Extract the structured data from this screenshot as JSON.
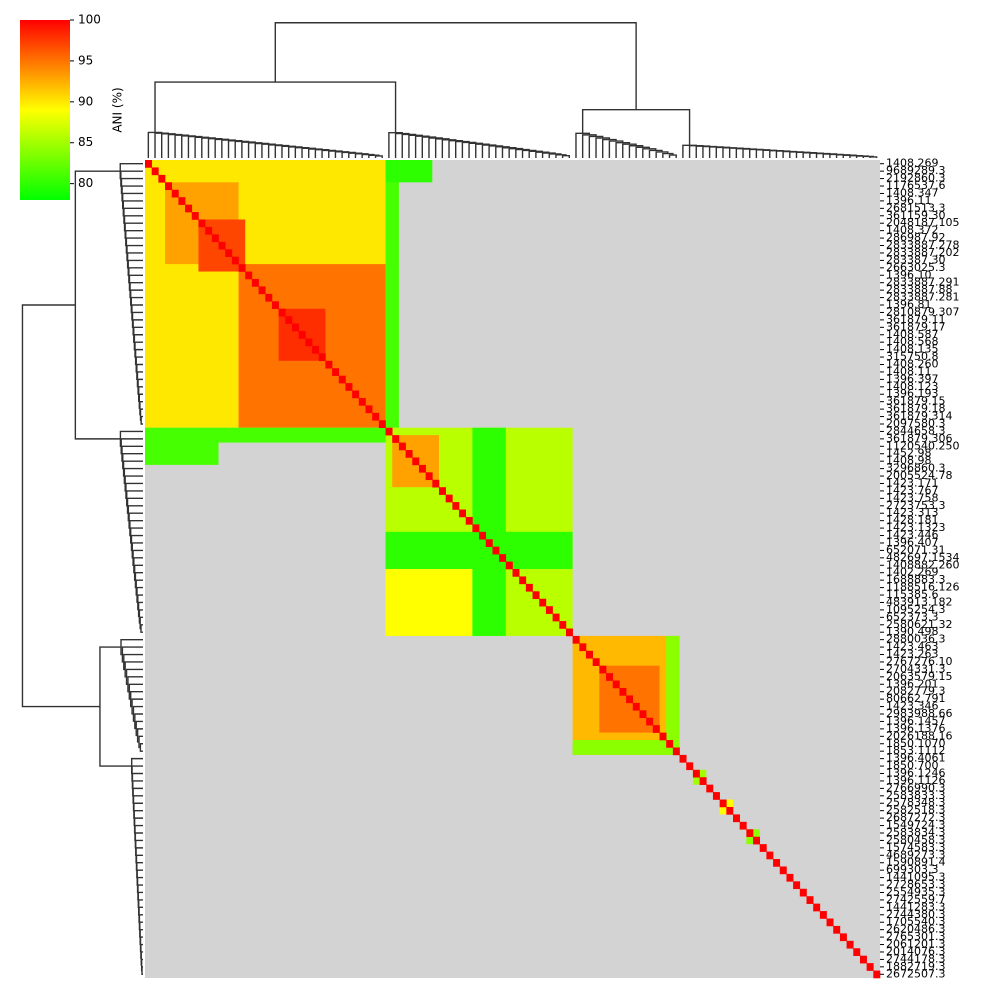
{
  "chart_data": {
    "type": "clustermap",
    "colorbar_label": "ANI (%)",
    "clim": [
      78,
      100
    ],
    "cticks": [
      80,
      85,
      90,
      95,
      100
    ],
    "colormap": [
      "#00ff00",
      "#ffff00",
      "#ff0000"
    ],
    "missing_color": "#d3d3d3",
    "diagonal_value": 100,
    "rows": [
      "1408.269",
      "9689289.3",
      "2192860.3",
      "1176537.6",
      "1408.347",
      "1396.11",
      "2681513.3",
      "361159.30",
      "2048187.105",
      "1408.372",
      "286987.92",
      "2833887.278",
      "2833887.202",
      "283387.30",
      "2663025.3",
      "1396.10",
      "2833887.291",
      "2833887.88",
      "2833887.281",
      "1396.81",
      "2810879.307",
      "361879.11",
      "361879.17",
      "1408.587",
      "1408.568",
      "1408.135",
      "315750.8",
      "1408.260",
      "1408.11",
      "1396.397",
      "1408.123",
      "1396.193",
      "361879.15",
      "361879.18",
      "361879.314",
      "2097580.3",
      "2844658.3",
      "361879.306",
      "1120540.250",
      "1452.98",
      "1408.98",
      "3296860.3",
      "2005524.78",
      "1423.171",
      "1423.767",
      "1423.758",
      "2723753.3",
      "1423.313",
      "1428.181",
      "1423.1323",
      "1423.446",
      "1396.407",
      "652071.31",
      "482697.1534",
      "1408882.260",
      "1402.269",
      "1688883.3",
      "1188516.126",
      "115385.6",
      "483913.182",
      "1095254.3",
      "652373.3",
      "2580621.32",
      "1390.498",
      "2880036.3",
      "1423.463",
      "1423.263",
      "2767276.10",
      "2704331.3",
      "2063579.15",
      "1396.201",
      "2082779.3",
      "80662.791",
      "1423.346",
      "2983988.66",
      "1396.1457",
      "1396.1376",
      "2026188.16",
      "1850.1070",
      "1853.1112",
      "1396.4061",
      "1850.700",
      "1396.1246",
      "1396.1126",
      "2766990.3",
      "2583833.3",
      "2578348.3",
      "2582518.3",
      "2687272.3",
      "1549724.3",
      "2583834.3",
      "2580458.3",
      "1574583.3",
      "4689273.3",
      "1590891.4",
      "699303.3",
      "1441095.3",
      "2728653.3",
      "2554935.3",
      "2742559.7",
      "1441283.3",
      "2744380.3",
      "1705540.3",
      "2620486.3",
      "2765301.3",
      "2061201.3",
      "2014076.3",
      "2744178.3",
      "1882719.3",
      "2672507.3"
    ],
    "blocks": [
      {
        "rows": [
          0,
          35
        ],
        "cols": [
          0,
          35
        ],
        "value": 90
      },
      {
        "rows": [
          3,
          13
        ],
        "cols": [
          3,
          13
        ],
        "value": 93
      },
      {
        "rows": [
          8,
          14
        ],
        "cols": [
          8,
          14
        ],
        "value": 97
      },
      {
        "rows": [
          14,
          35
        ],
        "cols": [
          14,
          35
        ],
        "value": 95
      },
      {
        "rows": [
          20,
          26
        ],
        "cols": [
          20,
          26
        ],
        "value": 98
      },
      {
        "rows": [
          0,
          35
        ],
        "cols": [
          36,
          37
        ],
        "value": 81
      },
      {
        "rows": [
          0,
          2
        ],
        "cols": [
          36,
          42
        ],
        "value": 80
      },
      {
        "rows": [
          36,
          37
        ],
        "cols": [
          0,
          35
        ],
        "value": 81
      },
      {
        "rows": [
          37,
          40
        ],
        "cols": [
          0,
          10
        ],
        "value": 81
      },
      {
        "rows": [
          36,
          63
        ],
        "cols": [
          36,
          63
        ],
        "value": 86
      },
      {
        "rows": [
          37,
          43
        ],
        "cols": [
          37,
          43
        ],
        "value": 93
      },
      {
        "rows": [
          55,
          63
        ],
        "cols": [
          36,
          48
        ],
        "value": 89
      },
      {
        "rows": [
          36,
          63
        ],
        "cols": [
          49,
          53
        ],
        "value": 80
      },
      {
        "rows": [
          50,
          54
        ],
        "cols": [
          36,
          63
        ],
        "value": 80
      },
      {
        "rows": [
          64,
          79
        ],
        "cols": [
          64,
          79
        ],
        "value": 92
      },
      {
        "rows": [
          68,
          76
        ],
        "cols": [
          68,
          76
        ],
        "value": 95
      },
      {
        "rows": [
          78,
          79
        ],
        "cols": [
          64,
          79
        ],
        "value": 84
      },
      {
        "rows": [
          64,
          79
        ],
        "cols": [
          78,
          79
        ],
        "value": 84
      },
      {
        "rows": [
          82,
          83
        ],
        "cols": [
          82,
          83
        ],
        "value": 85
      },
      {
        "rows": [
          86,
          87
        ],
        "cols": [
          86,
          87
        ],
        "value": 89
      },
      {
        "rows": [
          90,
          91
        ],
        "cols": [
          90,
          91
        ],
        "value": 84
      }
    ]
  }
}
